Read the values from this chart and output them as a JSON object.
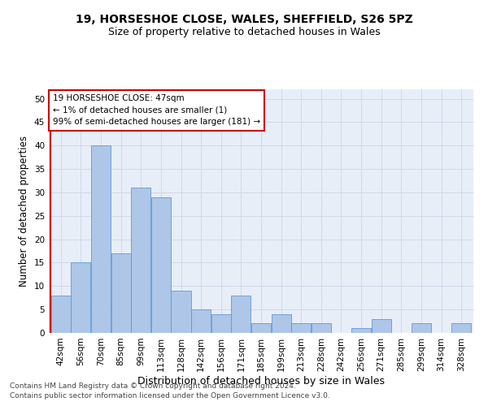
{
  "title_line1": "19, HORSESHOE CLOSE, WALES, SHEFFIELD, S26 5PZ",
  "title_line2": "Size of property relative to detached houses in Wales",
  "xlabel": "Distribution of detached houses by size in Wales",
  "ylabel": "Number of detached properties",
  "bar_labels": [
    "42sqm",
    "56sqm",
    "70sqm",
    "85sqm",
    "99sqm",
    "113sqm",
    "128sqm",
    "142sqm",
    "156sqm",
    "171sqm",
    "185sqm",
    "199sqm",
    "213sqm",
    "228sqm",
    "242sqm",
    "256sqm",
    "271sqm",
    "285sqm",
    "299sqm",
    "314sqm",
    "328sqm"
  ],
  "bar_values": [
    8,
    15,
    40,
    17,
    31,
    29,
    9,
    5,
    4,
    8,
    2,
    4,
    2,
    2,
    0,
    1,
    3,
    0,
    2,
    0,
    2
  ],
  "bar_color": "#aec6e8",
  "bar_edgecolor": "#5b9bd5",
  "highlight_color": "#cc0000",
  "annotation_line1": "19 HORSESHOE CLOSE: 47sqm",
  "annotation_line2": "← 1% of detached houses are smaller (1)",
  "annotation_line3": "99% of semi-detached houses are larger (181) →",
  "ylim": [
    0,
    52
  ],
  "yticks": [
    0,
    5,
    10,
    15,
    20,
    25,
    30,
    35,
    40,
    45,
    50
  ],
  "grid_color": "#d0d8e8",
  "background_color": "#e8eef8",
  "footer_line1": "Contains HM Land Registry data © Crown copyright and database right 2024.",
  "footer_line2": "Contains public sector information licensed under the Open Government Licence v3.0.",
  "title_fontsize": 10,
  "subtitle_fontsize": 9,
  "xlabel_fontsize": 9,
  "ylabel_fontsize": 8.5,
  "tick_fontsize": 7.5,
  "annotation_fontsize": 7.5,
  "footer_fontsize": 6.5
}
